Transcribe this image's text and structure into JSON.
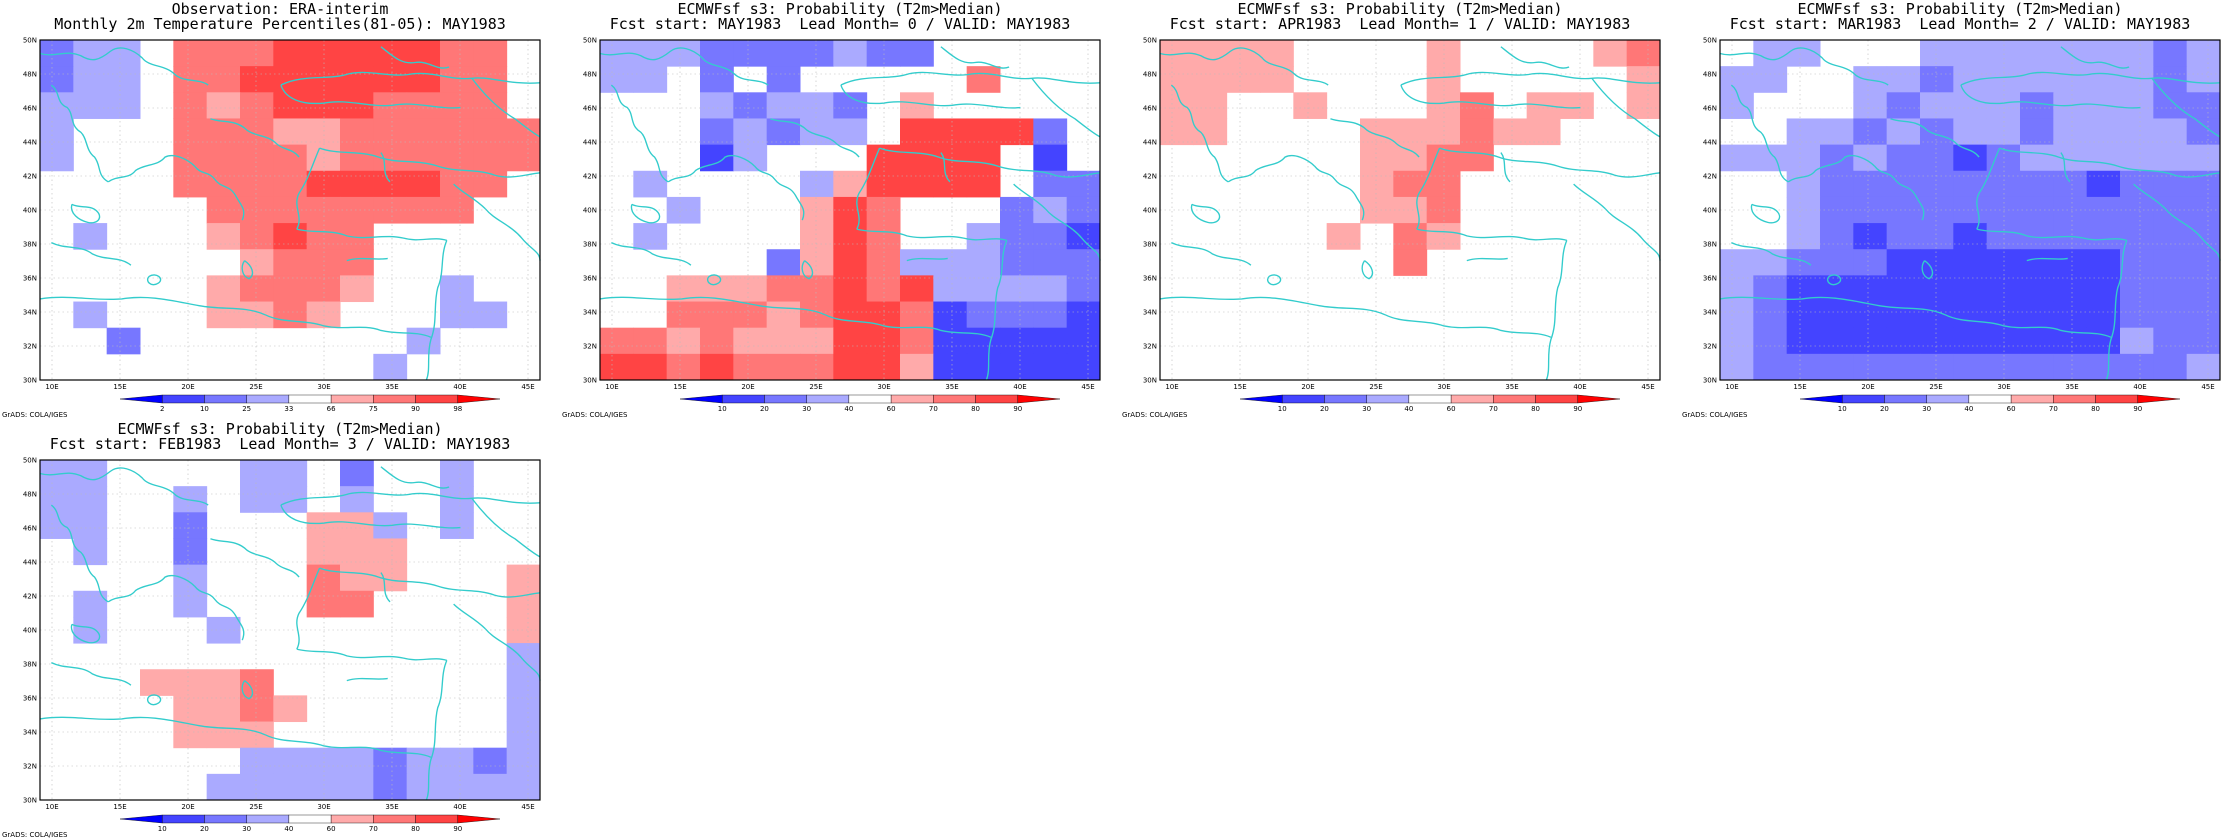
{
  "palette": {
    "reds": [
      "#ffaaaa",
      "#ff7777",
      "#ff4444",
      "#ff0000"
    ],
    "blues": [
      "#aaaaff",
      "#7777ff",
      "#4444ff",
      "#0000ff"
    ],
    "white": "#ffffff",
    "coast": "#33cccc",
    "grid": "#bbbbbb"
  },
  "lat_labels": [
    "50N",
    "48N",
    "46N",
    "44N",
    "42N",
    "40N",
    "38N",
    "36N",
    "34N",
    "32N",
    "30N"
  ],
  "lon_labels": [
    "10E",
    "15E",
    "20E",
    "25E",
    "30E",
    "35E",
    "40E",
    "45E"
  ],
  "credit": "GrADS: COLA/IGES",
  "panels": [
    {
      "title1": "Observation: ERA-interim",
      "title2": "Monthly 2m Temperature Percentiles(81-05): MAY1983",
      "colorbar": [
        "2",
        "10",
        "25",
        "33",
        "66",
        "75",
        "90",
        "98"
      ],
      "grid": [
        "-2-1-1 0 2 2 2 3 3 3 3 3 2 2 0",
        "-2-1-1 0 2 2 3 3 3 3 3 3 2 2 0",
        "-1-1-1 0 2 1 2 3 3 3 2 2 2 2 0",
        "-1 0 0 0 2 2 2 1 1 2 2 2 2 2 2",
        "-1 0 0 0 2 2 2 2 1 2 2 2 2 2 2",
        " 0 0 0 0 2 2 2 2 3 3 3 3 2 2 0",
        " 0 0 0 0 0 2 2 2 2 2 2 2 2 0 0",
        " 0-1 0 0 0 1 2 3 2 2 0 0 0 0 0",
        " 0 0 0 0 0 0 1 2 2 2 0 0 0 0 0",
        " 0 0 0 0 0 1 2 2 2 1 0 0-1 0 0",
        " 0-1 0 0 0 1 1 2 1 0 0 0-1-1 0",
        " 0 0-2 0 0 0 0 0 0 0 0-1 0 0 0",
        " 0 0 0 0 0 0 0 0 0 0-1 0 0 0 0"
      ]
    },
    {
      "title1": "ECMWFsf s3: Probability (T2m>Median)",
      "title2": "Fcst start: MAY1983  Lead Month= 0 / VALID: MAY1983",
      "colorbar": [
        "10",
        "20",
        "30",
        "40",
        "60",
        "70",
        "80",
        "90"
      ],
      "grid": [
        "-1-1-1-2-2-2-2-1-2-2 0 0 0 0 0",
        "-1-1 0-2 0-2 0 0 0 0 0 2 0 0 0",
        " 0 0 0-1-2-1-1-2 0 1 0 0 0 0 0",
        " 0 0 0-2-1-2-1-1 0 3 3 3 3-2 0",
        " 0 0 0-3-1 0 0 0 3 3 3 3 0-3 0",
        " 0-1 0 0 0 0-1 1 3 3 3 3 0-2-2",
        " 0 0-1 0 0 0 1 3 2 0 0 0-2-1-2",
        " 0-1 0 0 0 0 1 3 2 0 0-1-2-2-3",
        " 0 0 0 0 0-2 1 3 2-1-1-1-2-2-2",
        " 0 0 1 1 1 2 2 3 2 3-1-1-1-1-2",
        " 0 0 2 2 2 1 2 3 3 2-3-2-2-2-3",
        " 2 2 1 2 1 1 1 3 3 2-3-3-3-3-3",
        " 3 3 2 3 2 2 2 3 3 1-3-3-3-3-3"
      ]
    },
    {
      "title1": "ECMWFsf s3: Probability (T2m>Median)",
      "title2": "Fcst start: APR1983  Lead Month= 1 / VALID: MAY1983",
      "colorbar": [
        "10",
        "20",
        "30",
        "40",
        "60",
        "70",
        "80",
        "90"
      ],
      "grid": [
        " 1 1 1 1 0 0 0 0 1 0 0 0 0 1 2",
        " 1 1 1 1 0 0 0 0 1 0 0 0 0 0 1",
        " 1 1 0 0 1 0 0 0 1 2 0 1 1 0 1",
        " 1 1 0 0 0 0 1 1 1 2 1 1 0 0 0",
        " 0 0 0 0 0 0 1 1 2 2 0 0 0 0 0",
        " 0 0 0 0 0 0 1 2 2 0 0 0 0 0 0",
        " 0 0 0 0 0 0 1 1 2 0 0 0 0 0 0",
        " 0 0 0 0 0 1 0 2 1 0 0 0 0 0 0",
        " 0 0 0 0 0 0 0 2 0 0 0 0 0 0 0",
        " 0 0 0 0 0 0 0 0 0 0 0 0 0 0 0",
        " 0 0 0 0 0 0 0 0 0 0 0 0 0 0 0",
        " 0 0 0 0 0 0 0 0 0 0 0 0 0 0 0",
        " 0 0 0 0 0 0 0 0 0 0 0 0 0 0 0"
      ]
    },
    {
      "title1": "ECMWFsf s3: Probability (T2m>Median)",
      "title2": "Fcst start: MAR1983  Lead Month= 2 / VALID: MAY1983",
      "colorbar": [
        "10",
        "20",
        "30",
        "40",
        "60",
        "70",
        "80",
        "90"
      ],
      "grid": [
        " 0-1-1 0 0 0-1-1-1-1-1-1-1-2-1",
        "-1-1 0 0-1-1-2-1-1-1-1-1-1-2-1",
        "-1 0 0 0-1-2-1-1-1-2-1-1-1-2-2",
        " 0 0-1-1-2-1-2-1-1-2-1-1-1-1-2",
        "-1-1-1-2-1-2-2-3-2-1-1-1-1-1-1",
        " 0 0-1-2-2-2-2-2-2-2-2-3-2-2-2",
        " 0 0-1-2-2-2-2-2-2-2-2-2-2-2-2",
        " 0 0-1-2-3-2-2-3-2-2-2-2-2-2-2",
        "-1-1-2-2-2-3-3-3-3-3-3-3-2-2-2",
        "-1-2-3-3-3-3-3-3-3-3-3-3-2-2-2",
        "-1-2-3-3-3-3-3-3-3-3-3-3-2-2-2",
        "-1-2-3-3-3-3-3-3-3-3-3-3-1-2-2",
        "-1-2-2-2-2-2-2-2-2-2-2-2-2-2-1"
      ]
    },
    {
      "title1": "ECMWFsf s3: Probability (T2m>Median)",
      "title2": "Fcst start: FEB1983  Lead Month= 3 / VALID: MAY1983",
      "colorbar": [
        "10",
        "20",
        "30",
        "40",
        "60",
        "70",
        "80",
        "90"
      ],
      "grid": [
        "-1-1 0 0 0 0-1-1 0-2 0 0-1 0 0",
        "-1-1 0 0-1 0-1-1 0-1 0 0-1 0 0",
        "-1-1 0 0-2 0 0 0 1 1-1 0-1 0 0",
        " 0-1 0 0-2 0 0 0 1 1 1 0 0 0 0",
        " 0 0 0 0-1 0 0 0 2 1 1 0 0 0 1",
        " 0-1 0 0-1 0 0 0 2 2 0 0 0 0 1",
        " 0-1 0 0 0-1 0 0 0 0 0 0 0 0 1",
        " 0 0 0 0 0 0 0 0 0 0 0 0 0 0-1",
        " 0 0 0 1 1 1 2 0 0 0 0 0 0 0-1",
        " 0 0 0 0 1 1 2 1 0 0 0 0 0 0-1",
        " 0 0 0 0 1 1 1 0 0 0 0 0 0 0-1",
        " 0 0 0 0 0 0-1-1-1-1-2-1-1-2-1",
        " 0 0 0 0 0-1-1-1-1-1-2-1-1-1-1"
      ]
    }
  ]
}
